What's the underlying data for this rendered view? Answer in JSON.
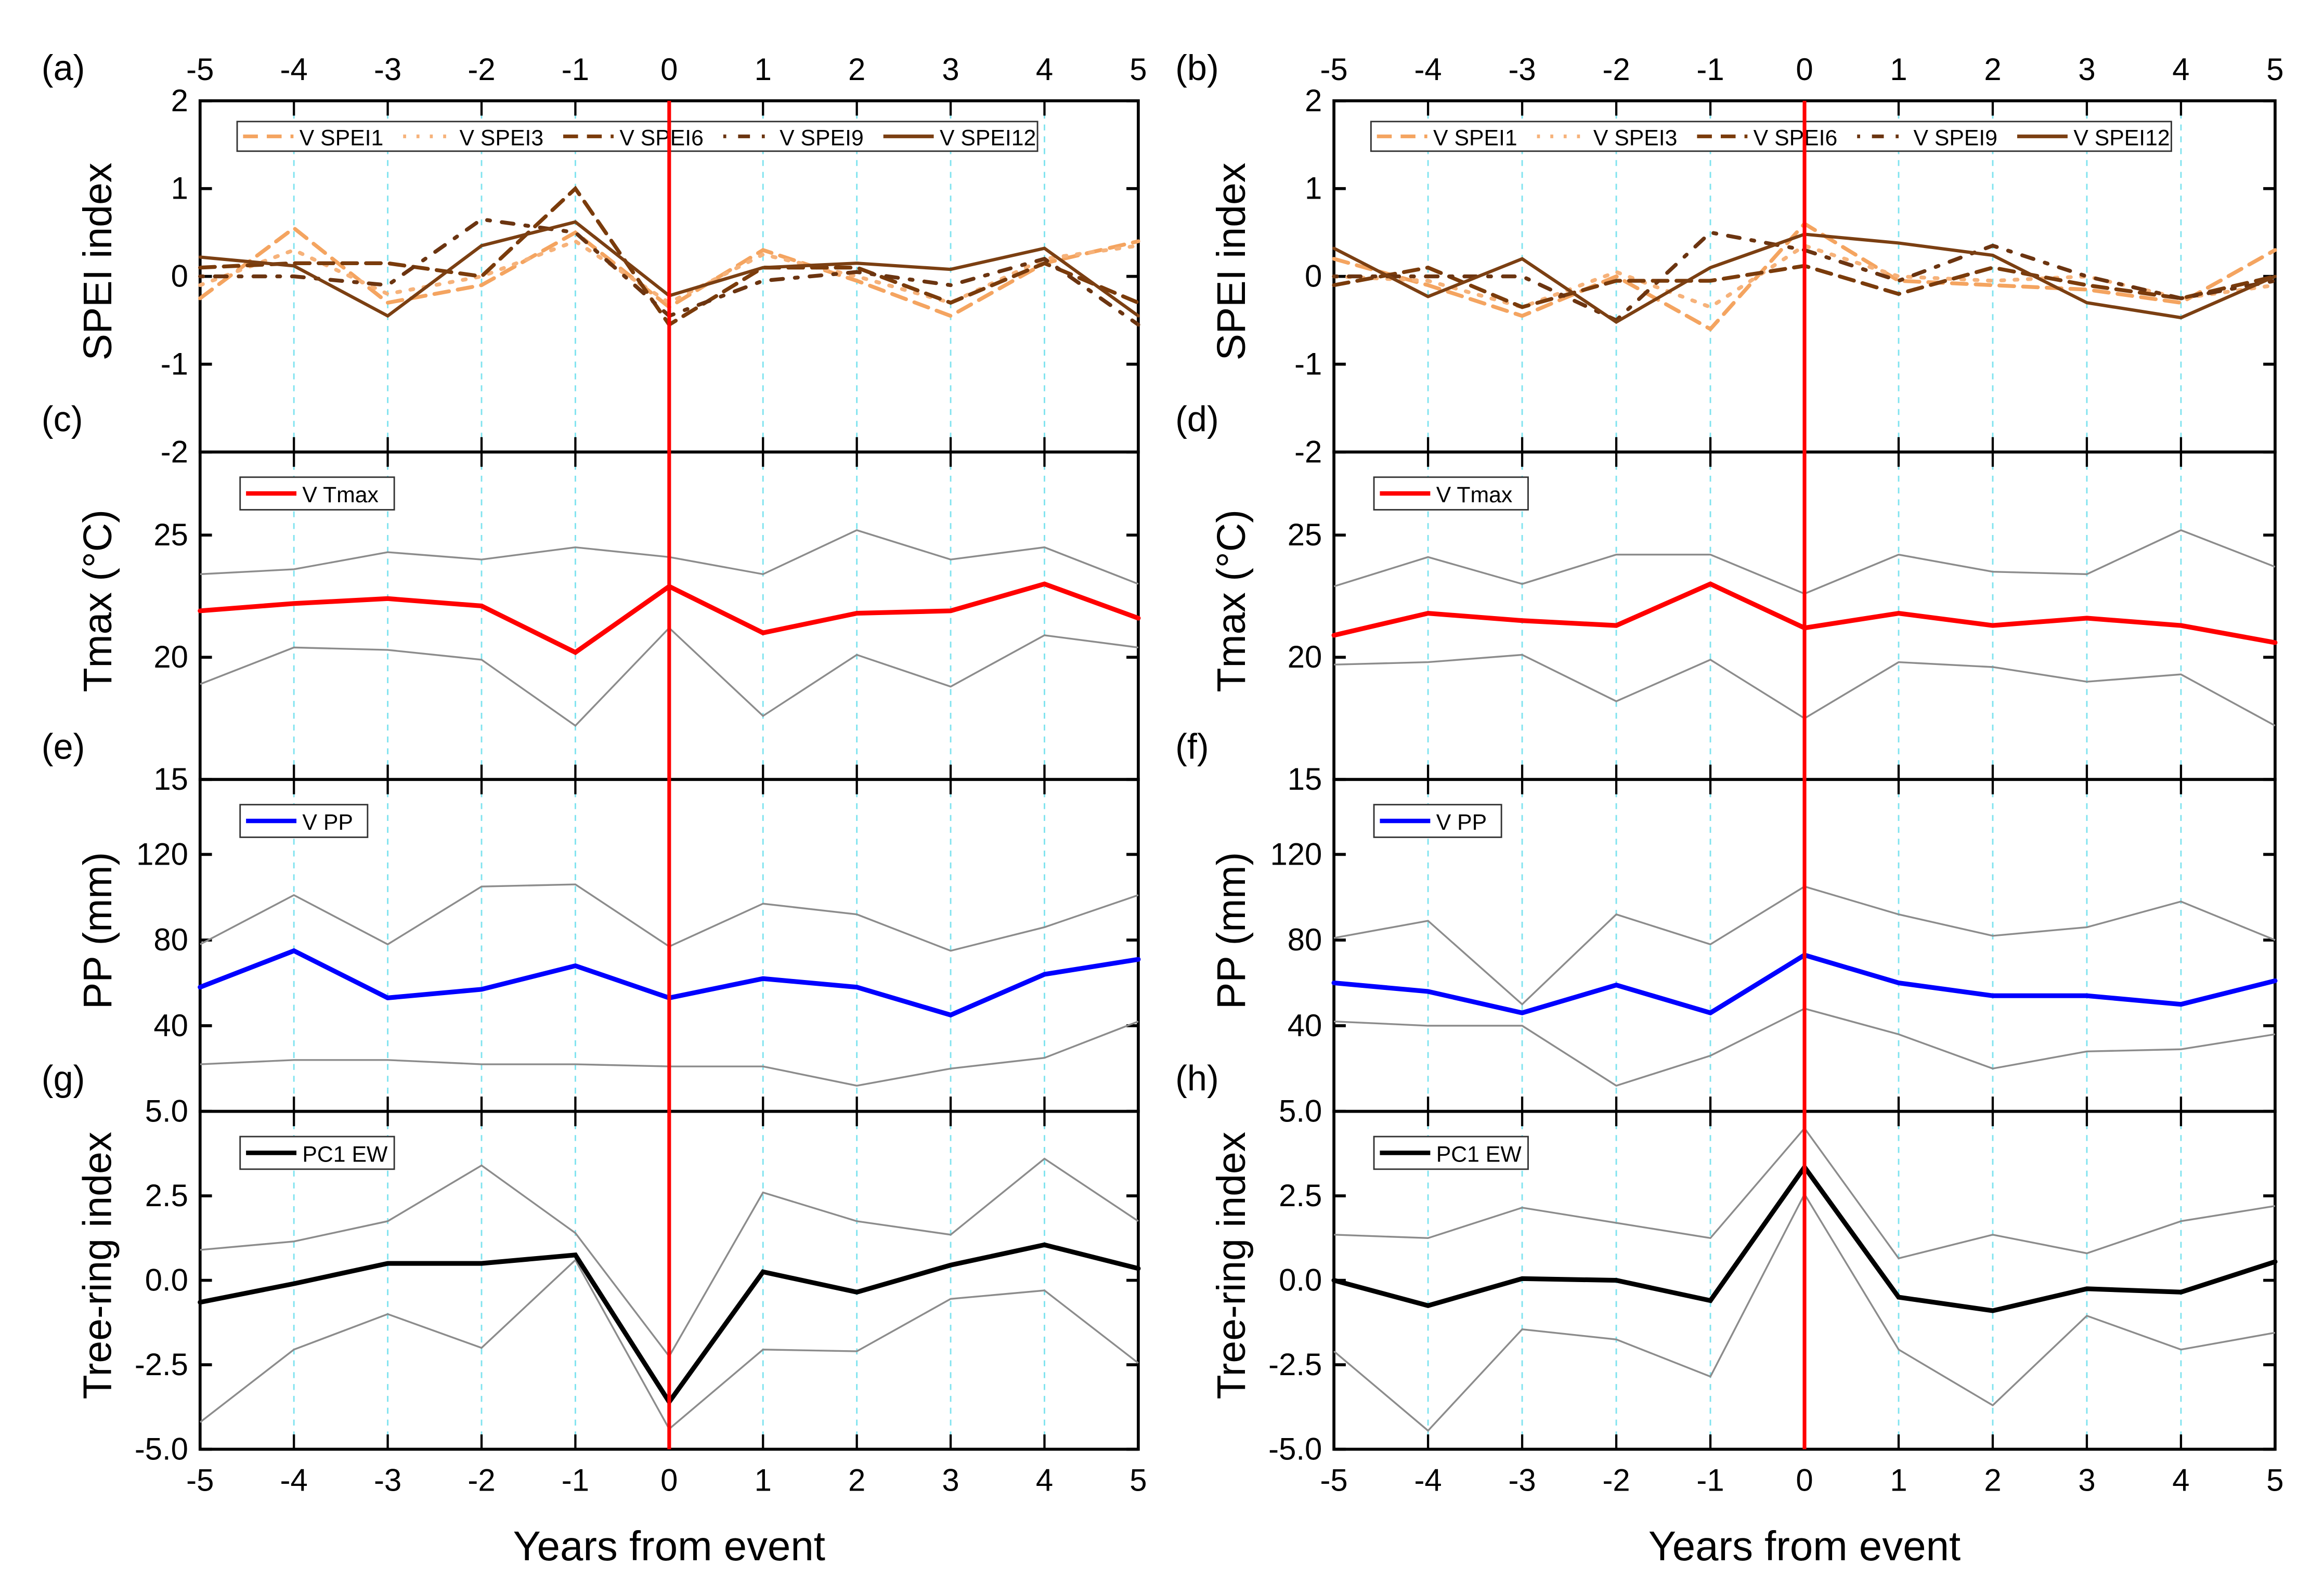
{
  "x_values": [
    -5,
    -4,
    -3,
    -2,
    -1,
    0,
    1,
    2,
    3,
    4,
    5
  ],
  "xlabel": "Years from event",
  "event_line_color": "#ff0000",
  "grid_color": "#7fe3ef",
  "chart_data": [
    {
      "panel": "(a)",
      "type": "line",
      "ylabel": "SPEI index",
      "ylim": [
        -2,
        2
      ],
      "yticks": [
        2,
        1,
        0,
        -1,
        -2
      ],
      "yticklabels": [
        "2",
        "1",
        "0",
        "-1",
        "-2"
      ],
      "series": [
        {
          "name": "V SPEI1",
          "style": "dash",
          "color": "#f4a460",
          "values": [
            -0.25,
            0.55,
            -0.3,
            -0.1,
            0.5,
            -0.35,
            0.3,
            -0.05,
            -0.45,
            0.15,
            0.4
          ]
        },
        {
          "name": "V SPEI3",
          "style": "dot",
          "color": "#f6b27a",
          "values": [
            -0.1,
            0.3,
            -0.2,
            0.0,
            0.4,
            -0.3,
            0.25,
            0.0,
            -0.3,
            0.2,
            0.35
          ]
        },
        {
          "name": "V SPEI6",
          "style": "dash",
          "color": "#7a3b0b",
          "values": [
            0.1,
            0.15,
            0.15,
            0.0,
            1.0,
            -0.55,
            0.1,
            0.1,
            -0.3,
            0.15,
            -0.3
          ]
        },
        {
          "name": "V SPEI9",
          "style": "dashdot",
          "color": "#6b3410",
          "values": [
            0.0,
            0.0,
            -0.1,
            0.65,
            0.5,
            -0.45,
            -0.05,
            0.05,
            -0.1,
            0.2,
            -0.55
          ]
        },
        {
          "name": "V SPEI12",
          "style": "solid",
          "color": "#7b3f12",
          "values": [
            0.22,
            0.12,
            -0.45,
            0.35,
            0.62,
            -0.22,
            0.1,
            0.15,
            0.08,
            0.32,
            -0.45
          ]
        }
      ]
    },
    {
      "panel": "(c)",
      "type": "line",
      "ylabel": "Tmax (°C)",
      "ylim": [
        15,
        28.4
      ],
      "yticks": [
        25,
        20,
        15
      ],
      "yticklabels": [
        "25",
        "20",
        "15"
      ],
      "series": [
        {
          "name": "V Tmax",
          "style": "solid",
          "color": "#ff0000",
          "values": [
            21.9,
            22.2,
            22.4,
            22.1,
            20.2,
            22.9,
            21.0,
            21.8,
            21.9,
            23.0,
            21.6
          ]
        }
      ],
      "upper": [
        23.4,
        23.6,
        24.3,
        24.0,
        24.5,
        24.1,
        23.4,
        25.2,
        24.0,
        24.5,
        23.0
      ],
      "lower": [
        18.9,
        20.4,
        20.3,
        19.9,
        17.2,
        21.2,
        17.6,
        20.1,
        18.8,
        20.9,
        20.4
      ]
    },
    {
      "panel": "(e)",
      "type": "line",
      "ylabel": "PP (mm)",
      "ylim": [
        0,
        155
      ],
      "yticks": [
        120,
        80,
        40
      ],
      "yticklabels": [
        "120",
        "80",
        "40"
      ],
      "series": [
        {
          "name": "V PP",
          "style": "solid",
          "color": "#0000ff",
          "values": [
            58,
            75,
            53,
            57,
            68,
            53,
            62,
            58,
            45,
            64,
            71
          ]
        }
      ],
      "upper": [
        78,
        101,
        78,
        105,
        106,
        77,
        97,
        92,
        75,
        86,
        101
      ],
      "lower": [
        22,
        24,
        24,
        22,
        22,
        21,
        21,
        12,
        20,
        25,
        42
      ]
    },
    {
      "panel": "(g)",
      "type": "line",
      "ylabel": "Tree-ring index",
      "ylim": [
        -5,
        5
      ],
      "yticks": [
        5,
        2.5,
        0,
        -2.5,
        -5
      ],
      "yticklabels": [
        "5.0",
        "2.5",
        "0.0",
        "-2.5",
        "-5.0"
      ],
      "series": [
        {
          "name": "PC1 EW",
          "style": "solid",
          "color": "#000000",
          "values": [
            -0.65,
            -0.1,
            0.5,
            0.5,
            0.75,
            -3.6,
            0.25,
            -0.35,
            0.45,
            1.05,
            0.35
          ]
        }
      ],
      "upper": [
        0.9,
        1.15,
        1.75,
        3.4,
        1.4,
        -2.25,
        2.6,
        1.75,
        1.35,
        3.6,
        1.75
      ],
      "lower": [
        -4.2,
        -2.05,
        -1.0,
        -2.0,
        0.6,
        -4.4,
        -2.05,
        -2.1,
        -0.55,
        -0.3,
        -2.45
      ]
    },
    {
      "panel": "(b)",
      "type": "line",
      "ylabel": "SPEI index",
      "ylim": [
        -2,
        2
      ],
      "yticks": [
        2,
        1,
        0,
        -1,
        -2
      ],
      "yticklabels": [
        "2",
        "1",
        "0",
        "-1",
        "-2"
      ],
      "series": [
        {
          "name": "V SPEI1",
          "style": "dash",
          "color": "#f4a460",
          "values": [
            0.2,
            -0.1,
            -0.45,
            0.0,
            -0.6,
            0.6,
            -0.05,
            -0.1,
            -0.15,
            -0.3,
            0.3
          ]
        },
        {
          "name": "V SPEI3",
          "style": "dot",
          "color": "#f6b27a",
          "values": [
            0.0,
            -0.05,
            -0.35,
            0.05,
            -0.35,
            0.35,
            0.0,
            -0.05,
            0.0,
            -0.25,
            -0.1
          ]
        },
        {
          "name": "V SPEI6",
          "style": "dash",
          "color": "#7a3b0b",
          "values": [
            -0.1,
            0.1,
            -0.35,
            -0.05,
            -0.05,
            0.12,
            -0.2,
            0.1,
            -0.1,
            -0.25,
            0.0
          ]
        },
        {
          "name": "V SPEI9",
          "style": "dashdot",
          "color": "#6b3410",
          "values": [
            0.0,
            0.0,
            0.0,
            -0.5,
            0.5,
            0.3,
            -0.05,
            0.35,
            0.0,
            -0.25,
            -0.05
          ]
        },
        {
          "name": "V SPEI12",
          "style": "solid",
          "color": "#7b3f12",
          "values": [
            0.32,
            -0.23,
            0.2,
            -0.52,
            0.1,
            0.48,
            0.38,
            0.24,
            -0.3,
            -0.47,
            0.0
          ]
        }
      ]
    },
    {
      "panel": "(d)",
      "type": "line",
      "ylabel": "Tmax (°C)",
      "ylim": [
        15,
        28.4
      ],
      "yticks": [
        25,
        20,
        15
      ],
      "yticklabels": [
        "25",
        "20",
        "15"
      ],
      "series": [
        {
          "name": "V Tmax",
          "style": "solid",
          "color": "#ff0000",
          "values": [
            20.9,
            21.8,
            21.5,
            21.3,
            23.0,
            21.2,
            21.8,
            21.3,
            21.6,
            21.3,
            20.6
          ]
        }
      ],
      "upper": [
        22.9,
        24.1,
        23.0,
        24.2,
        24.2,
        22.6,
        24.2,
        23.5,
        23.4,
        25.2,
        23.7
      ],
      "lower": [
        19.7,
        19.8,
        20.1,
        18.2,
        19.9,
        17.5,
        19.8,
        19.6,
        19.0,
        19.3,
        17.2
      ]
    },
    {
      "panel": "(f)",
      "type": "line",
      "ylabel": "PP (mm)",
      "ylim": [
        0,
        155
      ],
      "yticks": [
        120,
        80,
        40
      ],
      "yticklabels": [
        "120",
        "80",
        "40"
      ],
      "series": [
        {
          "name": "V PP",
          "style": "solid",
          "color": "#0000ff",
          "values": [
            60,
            56,
            46,
            59,
            46,
            73,
            60,
            54,
            54,
            50,
            61
          ]
        }
      ],
      "upper": [
        81,
        89,
        50,
        92,
        78,
        105,
        92,
        82,
        86,
        98,
        80
      ],
      "lower": [
        42,
        40,
        40,
        12,
        26,
        48,
        36,
        20,
        28,
        29,
        36
      ]
    },
    {
      "panel": "(h)",
      "type": "line",
      "ylabel": "Tree-ring index",
      "ylim": [
        -5,
        5
      ],
      "yticks": [
        5,
        2.5,
        0,
        -2.5,
        -5
      ],
      "yticklabels": [
        "5.0",
        "2.5",
        "0.0",
        "-2.5",
        "-5.0"
      ],
      "series": [
        {
          "name": "PC1 EW",
          "style": "solid",
          "color": "#000000",
          "values": [
            0.0,
            -0.75,
            0.05,
            0.0,
            -0.6,
            3.35,
            -0.5,
            -0.9,
            -0.25,
            -0.35,
            0.55
          ]
        }
      ],
      "upper": [
        1.35,
        1.25,
        2.15,
        1.7,
        1.25,
        4.5,
        0.65,
        1.35,
        0.8,
        1.75,
        2.2
      ],
      "lower": [
        -2.1,
        -4.45,
        -1.45,
        -1.75,
        -2.85,
        2.55,
        -2.05,
        -3.7,
        -1.05,
        -2.05,
        -1.55
      ]
    }
  ]
}
